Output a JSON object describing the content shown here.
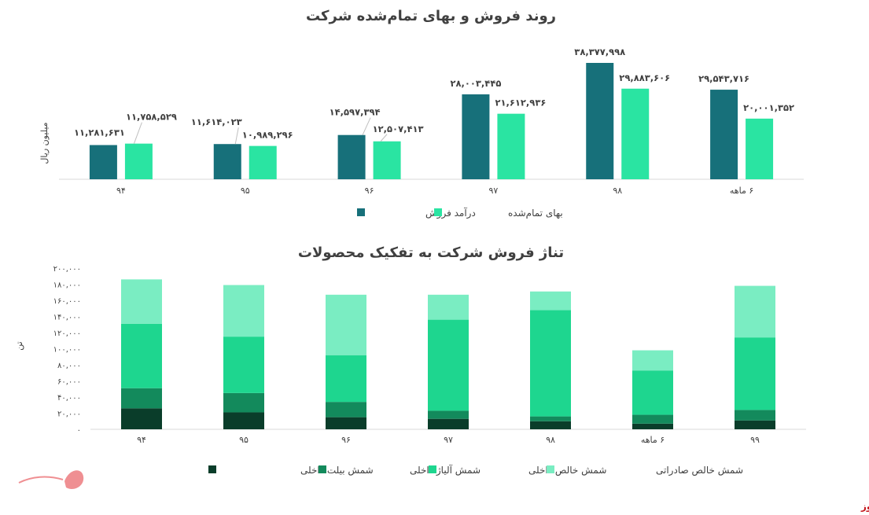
{
  "chart_data": [
    {
      "type": "bar",
      "title": "روند فروش و بهای تمام‌شده شرکت",
      "ylabel": "میلیون ریال",
      "xlabel": "",
      "categories": [
        "۹۴",
        "۹۵",
        "۹۶",
        "۹۷",
        "۹۸",
        "۶ ماهه"
      ],
      "series": [
        {
          "name": "درآمد فروش",
          "color": "#17707a",
          "values": [
            11281631,
            11614023,
            14597394,
            28003445,
            38377998,
            29543716
          ],
          "labels": [
            "۱۱,۲۸۱,۶۳۱",
            "۱۱,۶۱۴,۰۲۳",
            "۱۴,۵۹۷,۳۹۴",
            "۲۸,۰۰۳,۴۴۵",
            "۳۸,۳۷۷,۹۹۸",
            "۲۹,۵۴۳,۷۱۶"
          ]
        },
        {
          "name": "بهای تمام‌شده",
          "color": "#2ae4a2",
          "values": [
            11758529,
            10989296,
            12507413,
            21612936,
            29883606,
            20001352
          ],
          "labels": [
            "۱۱,۷۵۸,۵۲۹",
            "۱۰,۹۸۹,۲۹۶",
            "۱۲,۵۰۷,۴۱۳",
            "۲۱,۶۱۲,۹۳۶",
            "۲۹,۸۸۳,۶۰۶",
            "۲۰,۰۰۱,۳۵۲"
          ]
        }
      ],
      "legend_position": "bottom",
      "grid": false
    },
    {
      "type": "bar",
      "stacked": true,
      "title": "تناژ فروش شرکت به تفکیک محصولات",
      "ylabel": "تن",
      "xlabel": "",
      "ylim": [
        0,
        200000
      ],
      "yticks": [
        0,
        20000,
        40000,
        60000,
        80000,
        100000,
        120000,
        140000,
        160000,
        180000,
        200000
      ],
      "ytick_labels": [
        "۰",
        "۲۰,۰۰۰",
        "۴۰,۰۰۰",
        "۶۰,۰۰۰",
        "۸۰,۰۰۰",
        "۱۰۰,۰۰۰",
        "۱۲۰,۰۰۰",
        "۱۴۰,۰۰۰",
        "۱۶۰,۰۰۰",
        "۱۸۰,۰۰۰",
        "۲۰۰,۰۰۰"
      ],
      "categories": [
        "۹۴",
        "۹۵",
        "۹۶",
        "۹۷",
        "۹۸",
        "۶ ماهه",
        "۹۹"
      ],
      "series": [
        {
          "name": "شمش بیلت داخلی",
          "color": "#0a3d2a",
          "values": [
            26000,
            21000,
            15000,
            13000,
            10000,
            7000,
            11000
          ]
        },
        {
          "name": "شمش آلیاژ داخلی",
          "color": "#138a5c",
          "values": [
            25000,
            24000,
            19000,
            10000,
            6000,
            11000,
            13000
          ]
        },
        {
          "name": "شمش خالص داخلی",
          "color": "#1ed68f",
          "values": [
            80000,
            70000,
            58000,
            113000,
            132000,
            55000,
            90000
          ]
        },
        {
          "name": "شمش خالص صادراتی",
          "color": "#7aedc2",
          "values": [
            55000,
            64000,
            75000,
            31000,
            23000,
            25000,
            64000
          ]
        }
      ],
      "legend_position": "bottom",
      "grid": false
    }
  ],
  "watermark": {
    "text": "بورس نیوز",
    "color": "#c4161c"
  }
}
